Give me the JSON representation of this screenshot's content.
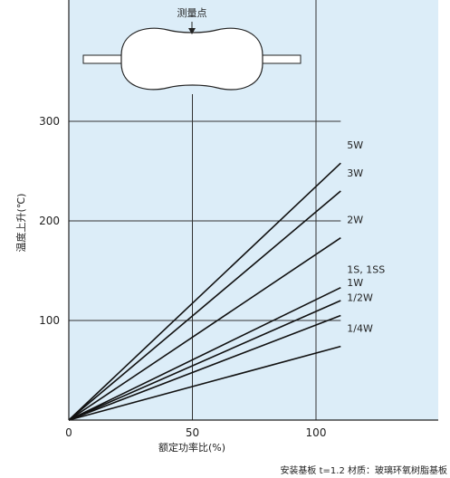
{
  "chart_data": {
    "type": "line",
    "xlabel": "额定功率比(%)",
    "ylabel": "温度上升(℃)",
    "xlim": [
      0,
      110
    ],
    "ylim": [
      0,
      330
    ],
    "x_ticks": [
      0,
      50,
      100
    ],
    "y_ticks": [
      100,
      200,
      300
    ],
    "x_tick_labels": [
      "0",
      "50",
      "100"
    ],
    "y_tick_labels": [
      "100",
      "200",
      "300"
    ],
    "series": [
      {
        "name": "5W",
        "x": [
          0,
          110
        ],
        "y": [
          0,
          258
        ]
      },
      {
        "name": "3W",
        "x": [
          0,
          110
        ],
        "y": [
          0,
          230
        ]
      },
      {
        "name": "2W",
        "x": [
          0,
          110
        ],
        "y": [
          0,
          183
        ]
      },
      {
        "name": "1S, 1SS",
        "x": [
          0,
          110
        ],
        "y": [
          0,
          133
        ]
      },
      {
        "name": "1W",
        "x": [
          0,
          110
        ],
        "y": [
          0,
          120
        ]
      },
      {
        "name": "1/2W",
        "x": [
          0,
          110
        ],
        "y": [
          0,
          105
        ]
      },
      {
        "name": "1/4W",
        "x": [
          0,
          110
        ],
        "y": [
          0,
          74
        ]
      }
    ],
    "series_label_y": [
      258,
      230,
      183,
      133,
      120,
      105,
      74
    ],
    "annotation": "测量点",
    "caption": "安装基板   t=1.2   材质：玻璃环氧树脂基板",
    "line_color": "#111111",
    "background_color": "#dcedf8",
    "grid": true
  }
}
